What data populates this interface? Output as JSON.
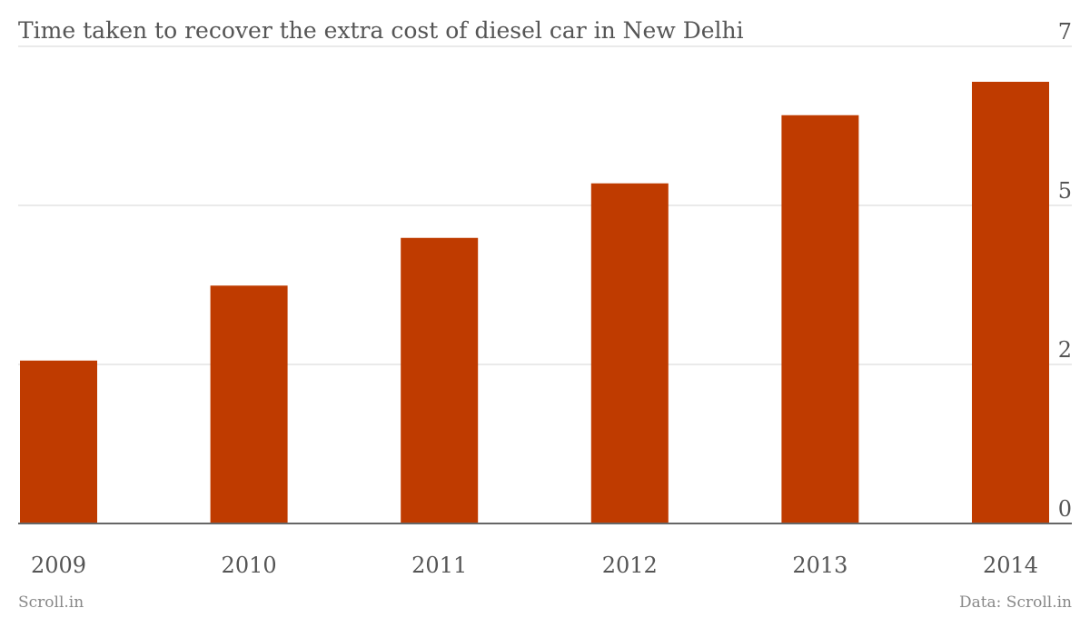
{
  "chart_data": {
    "type": "bar",
    "title": "Time taken to recover the extra cost of diesel car in New Delhi",
    "source_left": "Scroll.in",
    "source_right": "Data: Scroll.in",
    "categories": [
      "2009",
      "2010",
      "2011",
      "2012",
      "2013",
      "2014"
    ],
    "values": [
      2.39,
      3.49,
      4.19,
      4.99,
      5.99,
      6.48
    ],
    "color": "#bf3b00",
    "ylim": [
      0,
      7
    ],
    "yticks": [
      0,
      {
        "value": 2.3333,
        "label": "2"
      },
      {
        "value": 4.6667,
        "label": "5"
      },
      7
    ],
    "grid": true
  }
}
